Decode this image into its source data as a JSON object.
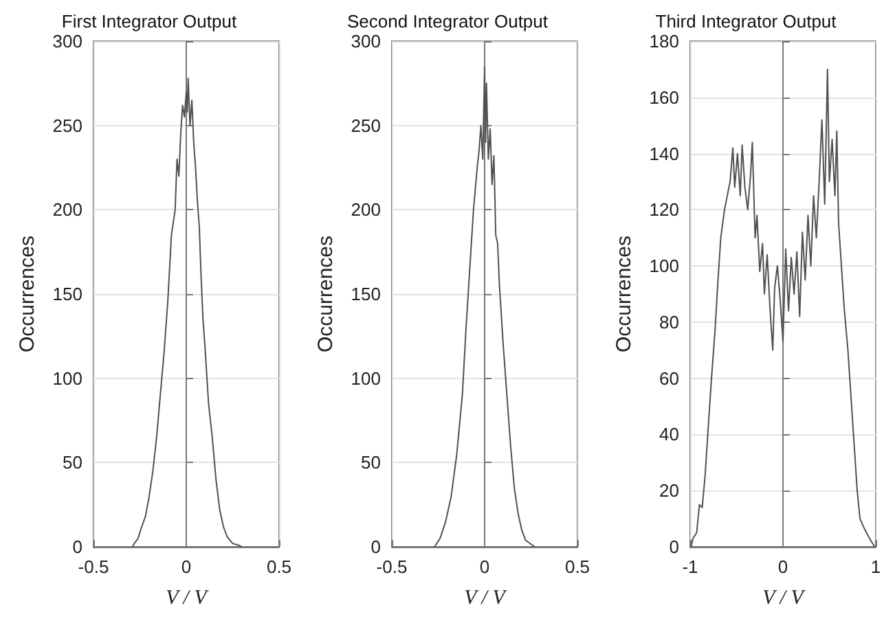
{
  "chart_data": [
    {
      "type": "line",
      "title": "First Integrator Output",
      "xlabel": "V / V",
      "ylabel": "Occurrences",
      "color": "#505050",
      "grid": true,
      "xlim": [
        -0.5,
        0.5
      ],
      "xticks": [
        -0.5,
        0,
        0.5
      ],
      "ylim": [
        0,
        300
      ],
      "yticks": [
        0,
        50,
        100,
        150,
        200,
        250,
        300
      ],
      "x": [
        -0.29,
        -0.28,
        -0.26,
        -0.24,
        -0.22,
        -0.2,
        -0.18,
        -0.16,
        -0.14,
        -0.12,
        -0.1,
        -0.08,
        -0.06,
        -0.05,
        -0.04,
        -0.03,
        -0.02,
        -0.01,
        0,
        0.005,
        0.01,
        0.02,
        0.03,
        0.04,
        0.05,
        0.06,
        0.07,
        0.08,
        0.09,
        0.1,
        0.12,
        0.14,
        0.16,
        0.18,
        0.2,
        0.22,
        0.25,
        0.28,
        0.3
      ],
      "values": [
        0,
        2,
        5,
        12,
        18,
        30,
        45,
        65,
        90,
        115,
        145,
        185,
        200,
        230,
        220,
        245,
        262,
        255,
        270,
        258,
        278,
        250,
        265,
        240,
        225,
        205,
        190,
        160,
        135,
        120,
        85,
        65,
        40,
        22,
        12,
        6,
        2,
        1,
        0
      ]
    },
    {
      "type": "line",
      "title": "Second Integrator Output",
      "xlabel": "V / V",
      "ylabel": "Occurrences",
      "color": "#505050",
      "grid": true,
      "xlim": [
        -0.5,
        0.5
      ],
      "xticks": [
        -0.5,
        0,
        0.5
      ],
      "ylim": [
        0,
        300
      ],
      "yticks": [
        0,
        50,
        100,
        150,
        200,
        250,
        300
      ],
      "x": [
        -0.27,
        -0.24,
        -0.21,
        -0.18,
        -0.15,
        -0.12,
        -0.1,
        -0.08,
        -0.06,
        -0.04,
        -0.03,
        -0.02,
        -0.01,
        0,
        0.005,
        0.01,
        0.02,
        0.03,
        0.04,
        0.05,
        0.06,
        0.07,
        0.08,
        0.1,
        0.12,
        0.14,
        0.16,
        0.18,
        0.2,
        0.22,
        0.27
      ],
      "values": [
        0,
        5,
        15,
        30,
        55,
        90,
        130,
        165,
        200,
        225,
        235,
        250,
        230,
        285,
        240,
        275,
        230,
        248,
        215,
        232,
        185,
        180,
        155,
        120,
        90,
        60,
        35,
        20,
        10,
        4,
        0
      ]
    },
    {
      "type": "line",
      "title": "Third Integrator Output",
      "xlabel": "V / V",
      "ylabel": "Occurrences",
      "color": "#505050",
      "grid": true,
      "xlim": [
        -1,
        1
      ],
      "xticks": [
        -1,
        0,
        1
      ],
      "ylim": [
        0,
        180
      ],
      "yticks": [
        0,
        20,
        40,
        60,
        80,
        100,
        120,
        140,
        160,
        180
      ],
      "x": [
        -0.99,
        -0.97,
        -0.93,
        -0.9,
        -0.87,
        -0.84,
        -0.8,
        -0.77,
        -0.73,
        -0.7,
        -0.67,
        -0.63,
        -0.6,
        -0.57,
        -0.54,
        -0.52,
        -0.49,
        -0.46,
        -0.44,
        -0.41,
        -0.38,
        -0.35,
        -0.33,
        -0.3,
        -0.28,
        -0.25,
        -0.22,
        -0.2,
        -0.17,
        -0.14,
        -0.11,
        -0.09,
        -0.06,
        -0.03,
        0,
        0.03,
        0.06,
        0.09,
        0.12,
        0.15,
        0.18,
        0.21,
        0.24,
        0.27,
        0.3,
        0.33,
        0.36,
        0.39,
        0.42,
        0.45,
        0.48,
        0.5,
        0.53,
        0.56,
        0.58,
        0.6,
        0.63,
        0.66,
        0.7,
        0.73,
        0.77,
        0.8,
        0.83,
        0.87,
        0.9,
        0.95,
        0.99
      ],
      "values": [
        0,
        3,
        5,
        15,
        14,
        25,
        45,
        60,
        78,
        95,
        110,
        120,
        125,
        130,
        142,
        128,
        140,
        125,
        143,
        128,
        120,
        132,
        144,
        110,
        118,
        98,
        108,
        90,
        104,
        85,
        70,
        92,
        100,
        88,
        73,
        106,
        84,
        103,
        90,
        105,
        82,
        112,
        95,
        118,
        100,
        125,
        110,
        130,
        152,
        122,
        170,
        130,
        145,
        125,
        148,
        115,
        100,
        85,
        70,
        55,
        35,
        20,
        10,
        7,
        5,
        2,
        0
      ]
    }
  ]
}
